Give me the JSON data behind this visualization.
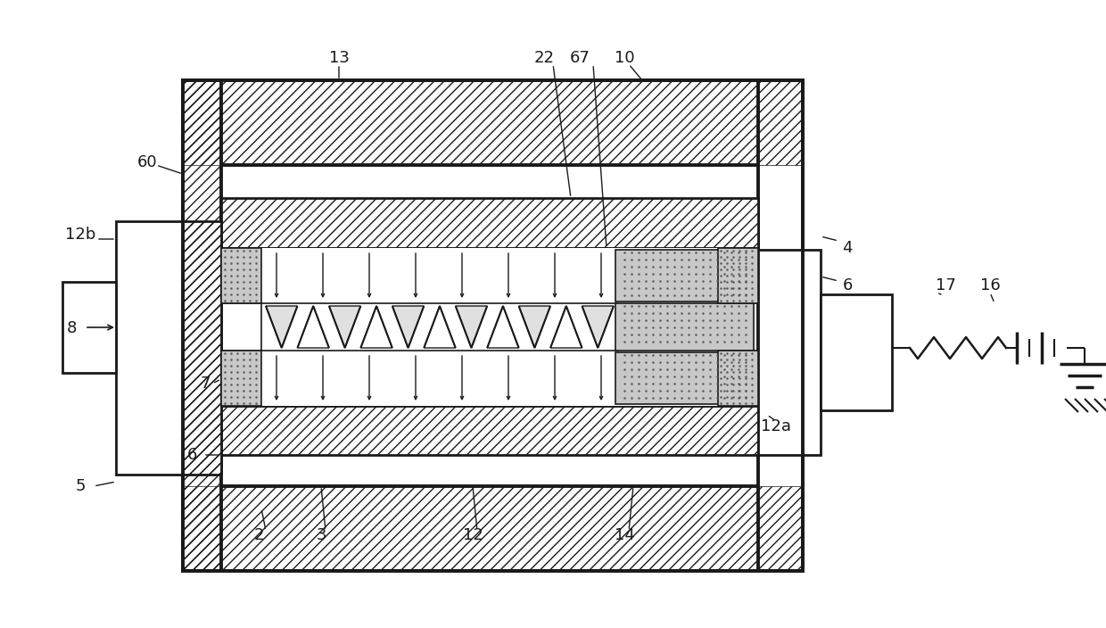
{
  "bg_color": "#ffffff",
  "line_color": "#1a1a1a",
  "fig_width": 12.4,
  "fig_height": 7.04,
  "label_fs": 13
}
